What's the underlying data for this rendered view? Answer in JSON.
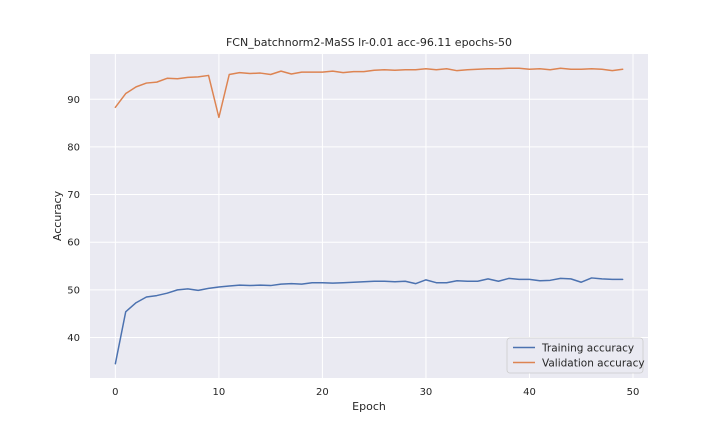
{
  "chart_data": {
    "type": "line",
    "title": "FCN_batchnorm2-MaSS lr-0.01 acc-96.11 epochs-50",
    "xlabel": "Epoch",
    "ylabel": "Accuracy",
    "xlim": [
      -2.45,
      51.45
    ],
    "ylim": [
      31.5,
      99.5
    ],
    "xticks": [
      0,
      10,
      20,
      30,
      40,
      50
    ],
    "yticks": [
      40,
      50,
      60,
      70,
      80,
      90
    ],
    "grid": true,
    "legend_position": "lower-right",
    "x": [
      0,
      1,
      2,
      3,
      4,
      5,
      6,
      7,
      8,
      9,
      10,
      11,
      12,
      13,
      14,
      15,
      16,
      17,
      18,
      19,
      20,
      21,
      22,
      23,
      24,
      25,
      26,
      27,
      28,
      29,
      30,
      31,
      32,
      33,
      34,
      35,
      36,
      37,
      38,
      39,
      40,
      41,
      42,
      43,
      44,
      45,
      46,
      47,
      48,
      49
    ],
    "series": [
      {
        "name": "Training accuracy",
        "color": "#4c72b0",
        "values": [
          34.5,
          45.4,
          47.3,
          48.5,
          48.8,
          49.3,
          50.0,
          50.2,
          49.9,
          50.3,
          50.6,
          50.8,
          51.0,
          50.9,
          51.0,
          50.9,
          51.2,
          51.3,
          51.2,
          51.5,
          51.5,
          51.4,
          51.5,
          51.6,
          51.7,
          51.8,
          51.8,
          51.7,
          51.8,
          51.3,
          52.1,
          51.5,
          51.5,
          51.9,
          51.8,
          51.8,
          52.3,
          51.8,
          52.4,
          52.2,
          52.2,
          51.9,
          52.0,
          52.4,
          52.3,
          51.6,
          52.5,
          52.3,
          52.2,
          52.2
        ]
      },
      {
        "name": "Validation accuracy",
        "color": "#dd8452",
        "values": [
          88.3,
          91.2,
          92.6,
          93.4,
          93.6,
          94.4,
          94.3,
          94.6,
          94.7,
          95.0,
          86.2,
          95.2,
          95.6,
          95.4,
          95.5,
          95.2,
          95.9,
          95.3,
          95.7,
          95.7,
          95.7,
          95.9,
          95.6,
          95.8,
          95.8,
          96.1,
          96.2,
          96.1,
          96.2,
          96.2,
          96.4,
          96.2,
          96.4,
          96.0,
          96.2,
          96.3,
          96.4,
          96.4,
          96.5,
          96.5,
          96.3,
          96.4,
          96.2,
          96.5,
          96.3,
          96.3,
          96.4,
          96.3,
          96.0,
          96.3
        ]
      }
    ]
  }
}
